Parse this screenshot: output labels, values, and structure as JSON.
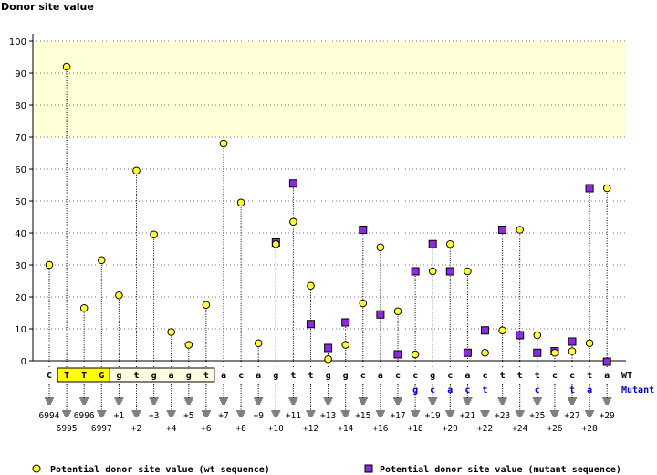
{
  "chart_data": {
    "type": "scatter",
    "title": "",
    "ylabel": "Donor site value",
    "ylim": [
      0,
      100
    ],
    "yticks": [
      0,
      10,
      20,
      30,
      40,
      50,
      60,
      70,
      80,
      90,
      100
    ],
    "grid": "vertical dotted stems",
    "highlight_band": [
      70,
      100
    ],
    "colors": {
      "wt": "#ffff33",
      "mutant": "#8a2be2",
      "band": "#ffffd8",
      "mutant_text": "#0000cc"
    },
    "row_labels": {
      "wt": "WT",
      "mutant": "Mutant"
    },
    "exon_box_letters": [
      "T",
      "T",
      "G"
    ],
    "positions": [
      "6994",
      "6995",
      "6996",
      "6997",
      "+1",
      "+2",
      "+3",
      "+4",
      "+5",
      "+6",
      "+7",
      "+8",
      "+9",
      "+10",
      "+11",
      "+12",
      "+13",
      "+14",
      "+15",
      "+16",
      "+17",
      "+18",
      "+19",
      "+20",
      "+21",
      "+22",
      "+23",
      "+24",
      "+25",
      "+26",
      "+27",
      "+28",
      "+29"
    ],
    "wt_sequence": [
      "C",
      "T",
      "T",
      "G",
      "g",
      "t",
      "g",
      "a",
      "g",
      "t",
      "a",
      "c",
      "a",
      "g",
      "t",
      "t",
      "g",
      "g",
      "c",
      "a",
      "c",
      "c",
      "g",
      "c",
      "a",
      "c",
      "t",
      "t",
      "t",
      "c",
      "c",
      "t",
      "a"
    ],
    "mutant_sequence": [
      "",
      "",
      "",
      "",
      "",
      "",
      "",
      "",
      "",
      "",
      "",
      "",
      "",
      "",
      "",
      "",
      "",
      "",
      "",
      "",
      "",
      "g",
      "c",
      "a",
      "c",
      "t",
      "",
      "",
      "c",
      "",
      "t",
      "a",
      ""
    ],
    "series": [
      {
        "name": "Potential donor site value (wt sequence)",
        "values": [
          30,
          92,
          16.5,
          31.5,
          20.5,
          59.5,
          39.5,
          9,
          5,
          17.5,
          68,
          49.5,
          5.5,
          36.5,
          43.5,
          23.5,
          0.5,
          5,
          18,
          35.5,
          15.5,
          2,
          28,
          36.5,
          28,
          2.5,
          9.5,
          41,
          8,
          2.5,
          3,
          5.5,
          54
        ]
      },
      {
        "name": "Potential donor site value (mutant sequence)",
        "values": [
          null,
          null,
          null,
          null,
          null,
          null,
          null,
          null,
          null,
          null,
          null,
          null,
          null,
          37,
          55.5,
          11.5,
          4,
          12,
          41,
          14.5,
          2,
          28,
          36.5,
          28,
          2.5,
          9.5,
          41,
          8,
          2.5,
          3,
          6,
          54,
          -0.3
        ]
      }
    ]
  }
}
